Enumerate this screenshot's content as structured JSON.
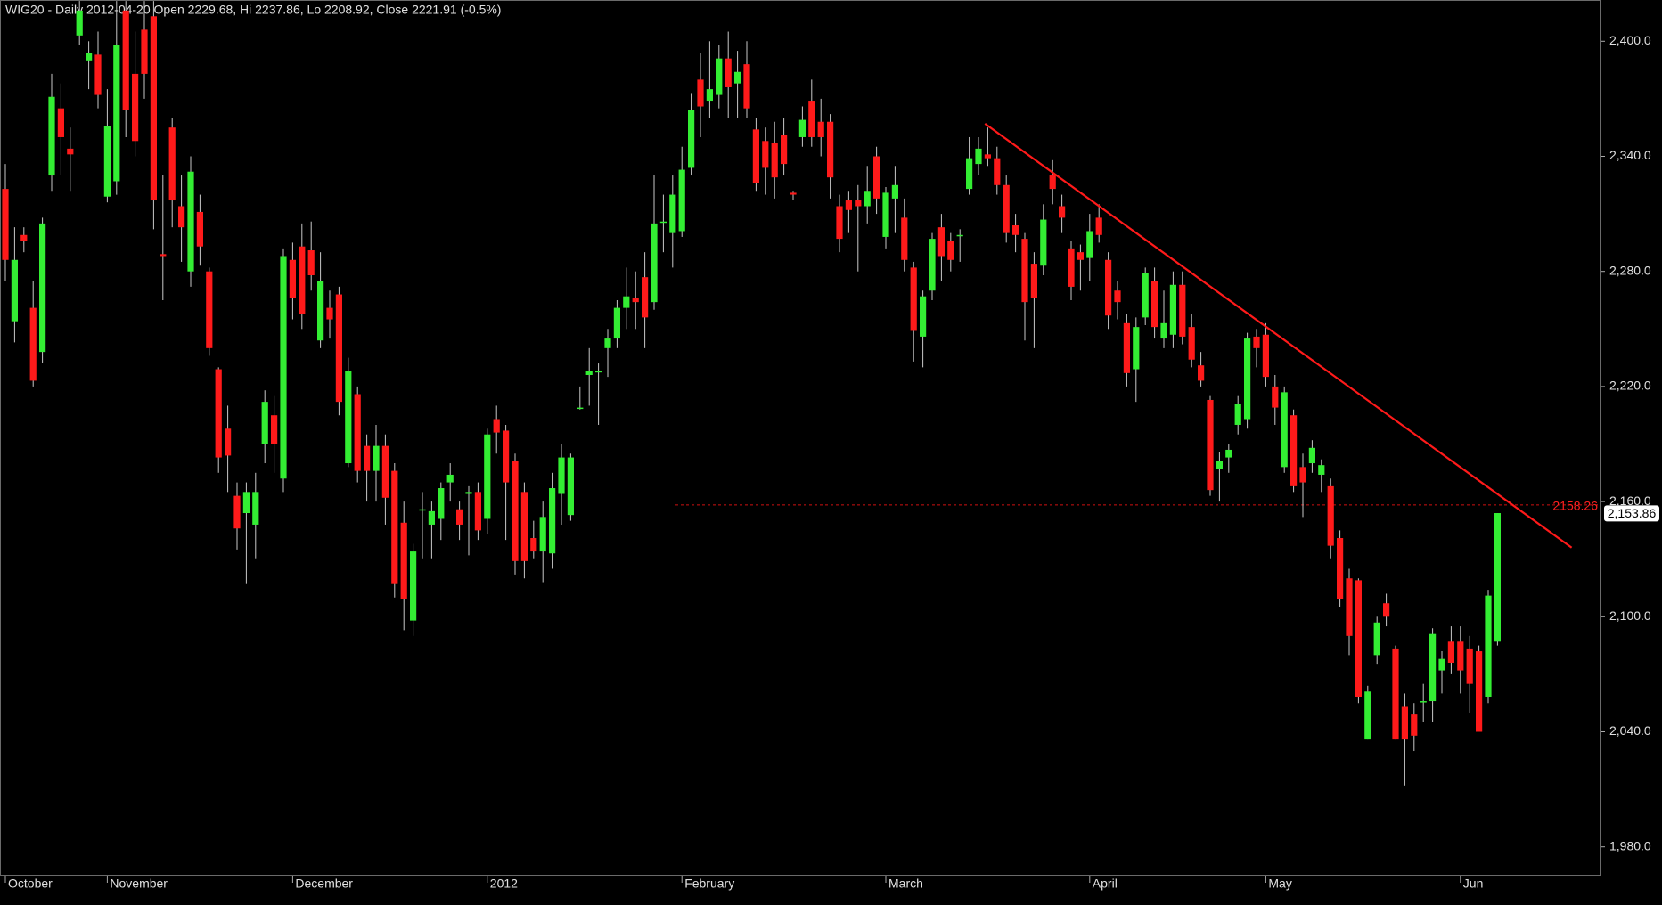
{
  "chart_data": {
    "type": "candlestick",
    "title": "WIG20 - Daily 2012-04-20 Open 2229.68, Hi 2237.86, Lo 2208.92, Close 2221.91 (-0.5%)",
    "categories": [
      "October",
      null,
      null,
      null,
      null,
      null,
      null,
      null,
      null,
      null,
      null,
      "November",
      null,
      null,
      null,
      null,
      null,
      null,
      null,
      null,
      null,
      null,
      null,
      null,
      null,
      null,
      null,
      null,
      null,
      null,
      null,
      "December",
      null,
      null,
      null,
      null,
      null,
      null,
      null,
      null,
      null,
      null,
      null,
      null,
      null,
      null,
      null,
      null,
      null,
      null,
      null,
      null,
      "2012",
      null,
      null,
      null,
      null,
      null,
      null,
      null,
      null,
      null,
      null,
      null,
      null,
      null,
      null,
      null,
      null,
      null,
      null,
      null,
      null,
      "February",
      null,
      null,
      null,
      null,
      null,
      null,
      null,
      null,
      null,
      null,
      null,
      null,
      null,
      null,
      null,
      null,
      null,
      null,
      null,
      null,
      null,
      "March",
      null,
      null,
      null,
      null,
      null,
      null,
      null,
      null,
      null,
      null,
      null,
      null,
      null,
      null,
      null,
      null,
      null,
      null,
      null,
      null,
      null,
      "April",
      null,
      null,
      null,
      null,
      null,
      null,
      null,
      null,
      null,
      null,
      null,
      null,
      null,
      null,
      null,
      null,
      null,
      null,
      "May",
      null,
      null,
      null,
      null,
      null,
      null,
      null,
      null,
      null,
      null,
      null,
      null,
      null,
      null,
      null,
      null,
      null,
      null,
      null,
      null,
      "Jun",
      null,
      null,
      null,
      null
    ],
    "open": [
      2323,
      2254,
      2299,
      2261,
      2238,
      2330,
      2365,
      2344,
      2403,
      2390,
      2393,
      2319,
      2327,
      2416,
      2383,
      2406,
      2413,
      2289,
      2355,
      2314,
      2280,
      2311,
      2280,
      2229,
      2198,
      2163,
      2154,
      2148,
      2190,
      2205,
      2172,
      2286,
      2293,
      2291,
      2244,
      2261,
      2268,
      2180,
      2216,
      2189,
      2176,
      2189,
      2176,
      2149,
      2098,
      2156,
      2148,
      2151,
      2170,
      2156,
      2164,
      2165,
      2151,
      2203,
      2197,
      2181,
      2165,
      2141,
      2134,
      2133,
      2164,
      2153,
      2209,
      2226,
      2228,
      2240,
      2245,
      2261,
      2266,
      2277,
      2264,
      2306,
      2300,
      2301,
      2334,
      2380,
      2369,
      2372,
      2391,
      2378,
      2388,
      2354,
      2348,
      2347,
      2351,
      2321,
      2350,
      2369,
      2358,
      2358,
      2314,
      2317,
      2317,
      2314,
      2340,
      2298,
      2318,
      2308,
      2282,
      2246,
      2270,
      2303,
      2296,
      2299,
      2323,
      2336,
      2341,
      2339,
      2325,
      2304,
      2297,
      2284,
      2283,
      2330,
      2314,
      2292,
      2290,
      2287,
      2308,
      2286,
      2270,
      2253,
      2229,
      2256,
      2275,
      2245,
      2247,
      2273,
      2251,
      2231,
      2213,
      2177,
      2183,
      2200,
      2203,
      2246,
      2247,
      2220,
      2178,
      2205,
      2178,
      2180,
      2174,
      2168,
      2141,
      2120,
      2119,
      2036,
      2080,
      2107,
      2083,
      2053,
      2049,
      2056,
      2056,
      2072,
      2087,
      2087,
      2083,
      2082,
      2058,
      2087
    ],
    "high": [
      2336,
      2303,
      2303,
      2275,
      2308,
      2383,
      2378,
      2355,
      2421,
      2400,
      2405,
      2375,
      2421,
      2421,
      2405,
      2421,
      2421,
      2330,
      2360,
      2330,
      2340,
      2320,
      2282,
      2230,
      2210,
      2170,
      2170,
      2175,
      2218,
      2215,
      2292,
      2295,
      2305,
      2306,
      2290,
      2270,
      2272,
      2235,
      2220,
      2195,
      2200,
      2195,
      2180,
      2160,
      2138,
      2165,
      2160,
      2170,
      2180,
      2160,
      2168,
      2170,
      2198,
      2210,
      2200,
      2185,
      2170,
      2150,
      2160,
      2175,
      2190,
      2185,
      2220,
      2240,
      2232,
      2250,
      2265,
      2282,
      2280,
      2290,
      2330,
      2320,
      2330,
      2345,
      2373,
      2394,
      2400,
      2398,
      2405,
      2395,
      2400,
      2360,
      2355,
      2358,
      2360,
      2322,
      2366,
      2380,
      2370,
      2362,
      2320,
      2322,
      2325,
      2335,
      2345,
      2324,
      2335,
      2318,
      2285,
      2270,
      2300,
      2310,
      2300,
      2302,
      2350,
      2350,
      2355,
      2345,
      2330,
      2310,
      2300,
      2290,
      2315,
      2338,
      2320,
      2296,
      2294,
      2310,
      2315,
      2290,
      2275,
      2258,
      2256,
      2282,
      2282,
      2270,
      2280,
      2280,
      2258,
      2238,
      2215,
      2186,
      2190,
      2215,
      2248,
      2250,
      2253,
      2226,
      2220,
      2208,
      2185,
      2192,
      2182,
      2172,
      2145,
      2125,
      2120,
      2064,
      2100,
      2112,
      2085,
      2060,
      2055,
      2065,
      2094,
      2082,
      2095,
      2095,
      2090,
      2085,
      2114,
      2154
    ],
    "low": [
      2275,
      2243,
      2290,
      2220,
      2232,
      2322,
      2330,
      2322,
      2398,
      2375,
      2365,
      2316,
      2320,
      2350,
      2340,
      2370,
      2302,
      2265,
      2303,
      2285,
      2272,
      2283,
      2236,
      2175,
      2165,
      2135,
      2117,
      2130,
      2180,
      2175,
      2165,
      2255,
      2250,
      2270,
      2240,
      2245,
      2205,
      2178,
      2170,
      2160,
      2160,
      2148,
      2110,
      2093,
      2090,
      2130,
      2130,
      2140,
      2160,
      2140,
      2132,
      2140,
      2143,
      2185,
      2140,
      2122,
      2120,
      2130,
      2118,
      2125,
      2148,
      2150,
      2208,
      2210,
      2200,
      2225,
      2240,
      2250,
      2250,
      2240,
      2260,
      2290,
      2282,
      2298,
      2330,
      2350,
      2360,
      2365,
      2360,
      2360,
      2360,
      2322,
      2320,
      2318,
      2330,
      2317,
      2345,
      2345,
      2340,
      2318,
      2290,
      2300,
      2280,
      2305,
      2310,
      2292,
      2300,
      2280,
      2233,
      2230,
      2265,
      2275,
      2280,
      2285,
      2320,
      2330,
      2335,
      2320,
      2295,
      2290,
      2244,
      2240,
      2278,
      2315,
      2300,
      2265,
      2270,
      2275,
      2295,
      2250,
      2255,
      2220,
      2212,
      2252,
      2245,
      2240,
      2240,
      2242,
      2230,
      2220,
      2163,
      2160,
      2175,
      2195,
      2198,
      2230,
      2220,
      2200,
      2175,
      2165,
      2152,
      2175,
      2165,
      2130,
      2105,
      2080,
      2055,
      2036,
      2075,
      2095,
      2036,
      2012,
      2030,
      2045,
      2045,
      2060,
      2070,
      2060,
      2050,
      2040,
      2055,
      2085
    ],
    "close": [
      2286,
      2286,
      2296,
      2223,
      2305,
      2371,
      2350,
      2341,
      2416,
      2394,
      2372,
      2356,
      2398,
      2364,
      2348,
      2383,
      2317,
      2288,
      2317,
      2303,
      2332,
      2293,
      2240,
      2183,
      2184,
      2146,
      2165,
      2165,
      2212,
      2190,
      2288,
      2266,
      2258,
      2278,
      2275,
      2255,
      2212,
      2228,
      2176,
      2176,
      2189,
      2162,
      2117,
      2109,
      2134,
      2156,
      2155,
      2167,
      2174,
      2148,
      2165,
      2145,
      2195,
      2196,
      2170,
      2129,
      2129,
      2134,
      2152,
      2167,
      2183,
      2183,
      2209,
      2228,
      2228,
      2245,
      2261,
      2267,
      2264,
      2256,
      2305,
      2306,
      2320,
      2333,
      2364,
      2366,
      2375,
      2391,
      2376,
      2384,
      2365,
      2326,
      2334,
      2329,
      2336,
      2320,
      2359,
      2350,
      2350,
      2329,
      2297,
      2312,
      2314,
      2322,
      2318,
      2321,
      2325,
      2286,
      2249,
      2267,
      2297,
      2288,
      2286,
      2299,
      2339,
      2344,
      2339,
      2325,
      2300,
      2299,
      2264,
      2266,
      2307,
      2323,
      2308,
      2272,
      2286,
      2301,
      2299,
      2257,
      2264,
      2227,
      2251,
      2279,
      2251,
      2253,
      2273,
      2246,
      2234,
      2223,
      2166,
      2181,
      2187,
      2211,
      2245,
      2240,
      2225,
      2209,
      2217,
      2168,
      2170,
      2188,
      2179,
      2137,
      2109,
      2090,
      2058,
      2061,
      2097,
      2100,
      2036,
      2036,
      2038,
      2056,
      2091,
      2078,
      2076,
      2072,
      2065,
      2040,
      2111,
      2154
    ],
    "up_color": "#33ee33",
    "down_color": "#ff1a1a",
    "ylim": [
      1965,
      2421.5
    ],
    "yticks": [
      {
        "value": 1980,
        "label": "1,980.0"
      },
      {
        "value": 2040,
        "label": "2,040.0"
      },
      {
        "value": 2100,
        "label": "2,100.0"
      },
      {
        "value": 2160,
        "label": "2,160.0"
      },
      {
        "value": 2220,
        "label": "2,220.0"
      },
      {
        "value": 2280,
        "label": "2,280.0"
      },
      {
        "value": 2340,
        "label": "2,340.0"
      },
      {
        "value": 2400,
        "label": "2,400.0"
      }
    ],
    "trendline": {
      "x": [
        105.7,
        169
      ],
      "y": [
        2357,
        2136
      ],
      "color": "#ff1a1a"
    },
    "price_line": 2158.26,
    "last_price": {
      "value": 2153.86,
      "label": "2,153.86"
    }
  }
}
